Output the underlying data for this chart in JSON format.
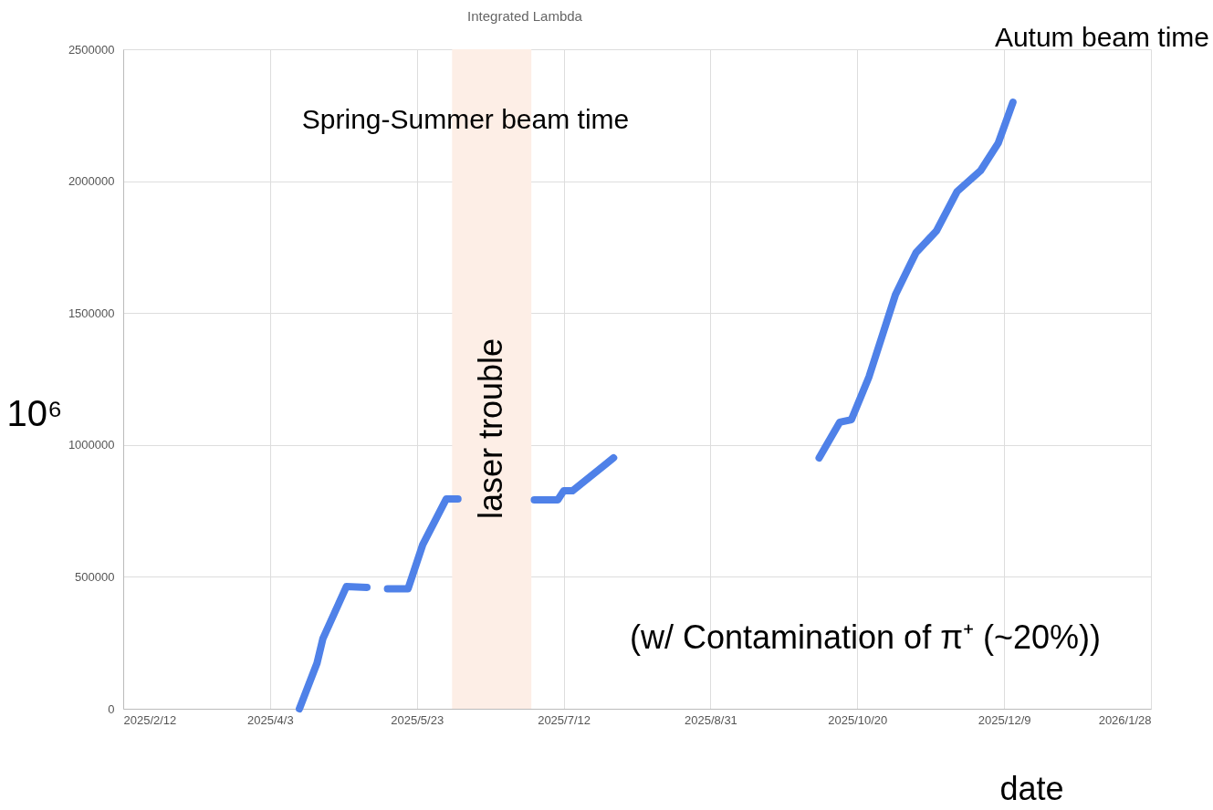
{
  "chart_data": {
    "type": "line",
    "title": "Integrated Lambda",
    "xlabel": "date",
    "ylabel": "10⁶",
    "x": [
      "2025-04-13",
      "2025-04-19",
      "2025-04-21",
      "2025-04-29",
      "2025-05-06",
      "2025-05-09",
      "2025-05-13",
      "2025-05-20",
      "2025-05-25",
      "2025-06-02",
      "2025-06-06",
      "2025-06-20",
      "2025-07-02",
      "2025-07-06",
      "2025-07-10",
      "2025-07-12",
      "2025-07-15",
      "2025-07-29",
      "2025-09-01",
      "2025-10-07",
      "2025-10-14",
      "2025-10-18",
      "2025-10-24",
      "2025-11-02",
      "2025-11-07",
      "2025-11-09",
      "2025-11-16",
      "2025-11-23",
      "2025-12-01",
      "2025-12-07",
      "2025-12-12"
    ],
    "series": [
      {
        "color": "#4f81e8",
        "values": [
          0,
          173000,
          266000,
          463000,
          460000,
          null,
          455000,
          455000,
          622000,
          795000,
          795000,
          null,
          792000,
          792000,
          792000,
          826000,
          826000,
          951000,
          null,
          951000,
          1086000,
          1096000,
          1259000,
          1570000,
          1684000,
          1729000,
          1812000,
          1961000,
          2040000,
          2144000,
          2299000
        ]
      }
    ],
    "xlim": [
      "2025-02-12",
      "2026-01-28"
    ],
    "xticks": [
      {
        "value": "2025-02-12",
        "label": "2025/2/12"
      },
      {
        "value": "2025-04-03",
        "label": "2025/4/3"
      },
      {
        "value": "2025-05-23",
        "label": "2025/5/23"
      },
      {
        "value": "2025-07-12",
        "label": "2025/7/12"
      },
      {
        "value": "2025-08-31",
        "label": "2025/8/31"
      },
      {
        "value": "2025-10-20",
        "label": "2025/10/20"
      },
      {
        "value": "2025-12-09",
        "label": "2025/12/9"
      },
      {
        "value": "2026-01-28",
        "label": "2026/1/28"
      }
    ],
    "ylim": [
      0,
      2500000
    ],
    "yticks": [
      0,
      500000,
      1000000,
      1500000,
      2000000,
      2500000
    ],
    "grid": true,
    "bands": [
      {
        "axis": "x",
        "from": "2025-06-04",
        "to": "2025-07-01",
        "label": "laser trouble",
        "color": "#fdeee6"
      }
    ],
    "annotations": [
      "Spring-Summer beam time",
      "Autum beam time",
      "(w/ Contamination of π⁺ (~20%))"
    ]
  }
}
